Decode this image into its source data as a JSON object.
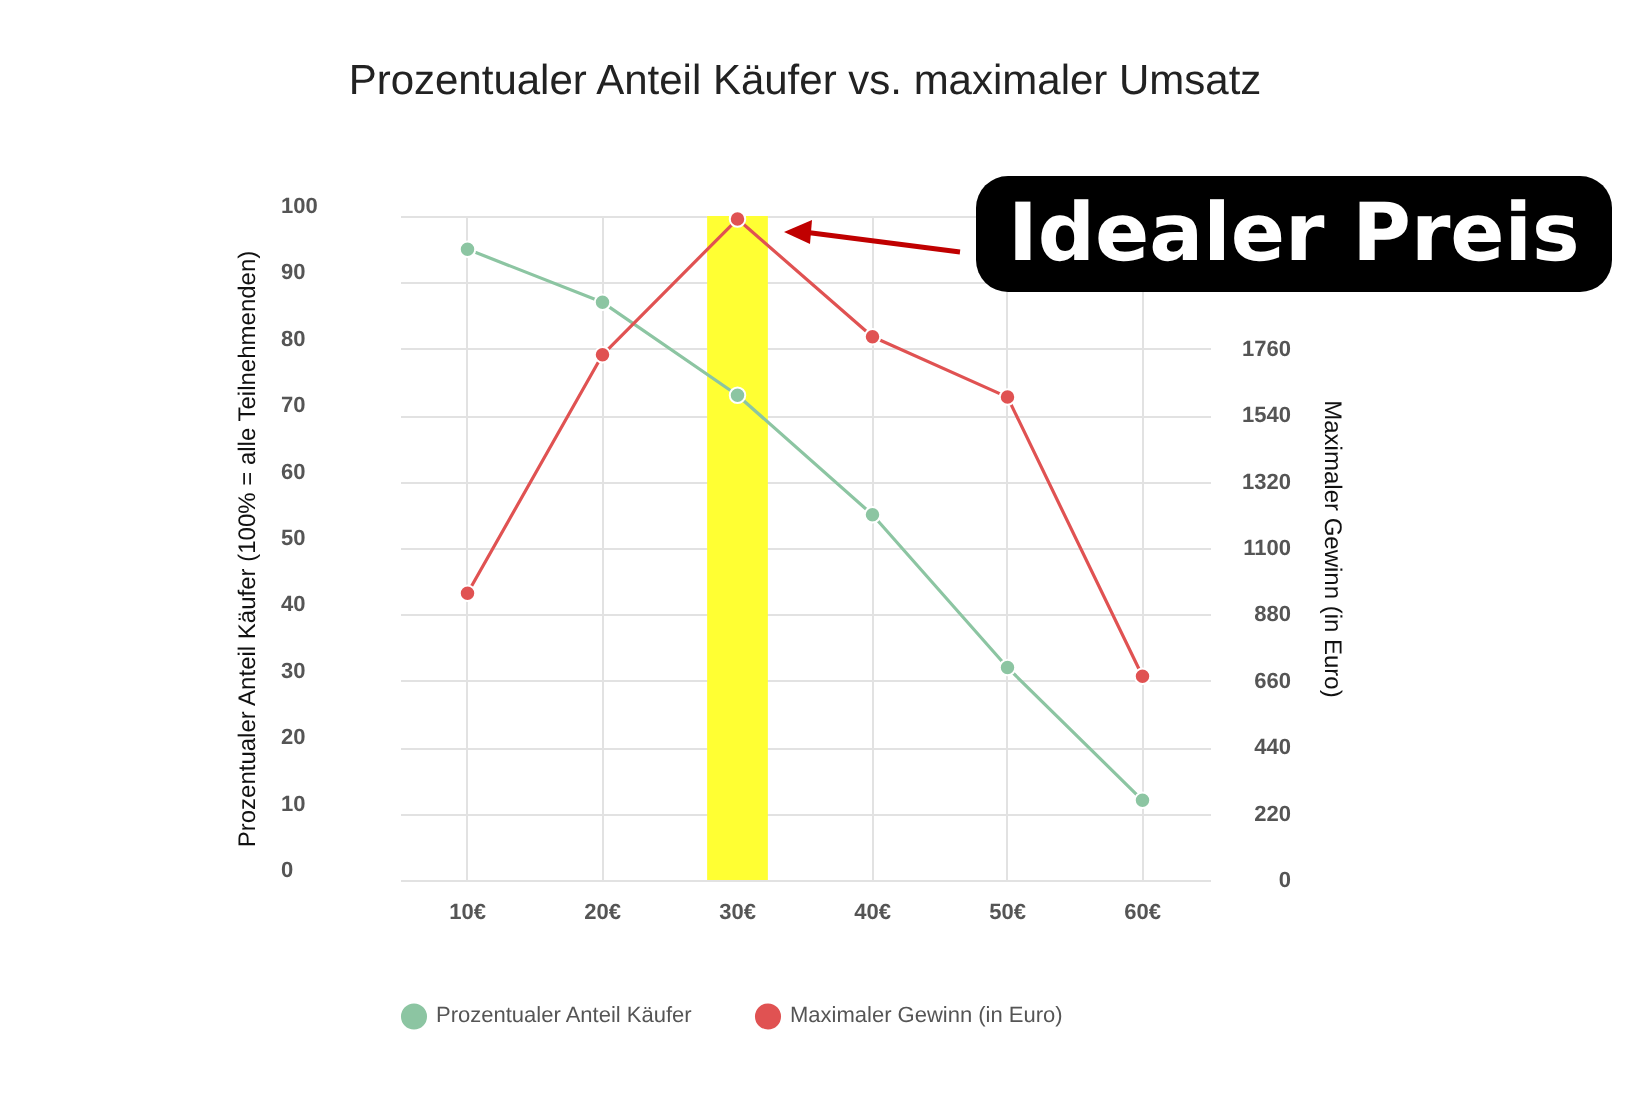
{
  "chart_data": {
    "type": "line",
    "title": "Prozentualer Anteil Käufer vs. maximaler Umsatz",
    "ylabel": "Prozentualer Anteil Käufer (100% = alle Teilnehmenden)",
    "y2label": "Maximaler Gewinn (in Euro)",
    "categories": [
      "10€",
      "20€",
      "30€",
      "40€",
      "50€",
      "60€"
    ],
    "series": [
      {
        "name": "Prozentualer Anteil Käufer",
        "color": "#8cc5a2",
        "values": [
          95,
          87,
          73,
          55,
          32,
          12
        ]
      },
      {
        "name": "Maximaler Gewinn (in Euro)",
        "color": "#e05252",
        "axis": "y2",
        "values": [
          950,
          1740,
          2190,
          1800,
          1600,
          675
        ]
      }
    ],
    "ylim": [
      0,
      100
    ],
    "yticks": [
      0,
      10,
      20,
      30,
      40,
      50,
      60,
      70,
      80,
      90,
      100
    ],
    "y2lim": [
      0,
      2200
    ],
    "y2ticks": [
      0,
      220,
      440,
      660,
      880,
      1100,
      1320,
      1540,
      1760
    ],
    "bands": [
      {
        "axis": "x",
        "from": "30€",
        "to": "30€",
        "color": "#ffff33"
      }
    ],
    "annotations": [
      "Idealer Preis"
    ],
    "grid": true,
    "legend": "bottom",
    "marker": "circle",
    "line_style": "solid"
  }
}
